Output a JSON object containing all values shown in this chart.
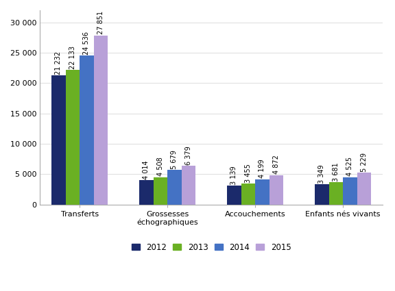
{
  "categories": [
    "Transferts",
    "Grossesses\néchographiques",
    "Accouchements",
    "Enfants nés vivants"
  ],
  "years": [
    "2012",
    "2013",
    "2014",
    "2015"
  ],
  "values": [
    [
      21232,
      22133,
      24536,
      27851
    ],
    [
      4014,
      4508,
      5679,
      6379
    ],
    [
      3139,
      3455,
      4199,
      4872
    ],
    [
      3349,
      3681,
      4525,
      5229
    ]
  ],
  "colors": [
    "#1b2a6b",
    "#6ab023",
    "#4472c4",
    "#b8a0d8"
  ],
  "bar_width": 0.16,
  "ylim": [
    0,
    32000
  ],
  "yticks": [
    0,
    5000,
    10000,
    15000,
    20000,
    25000,
    30000
  ],
  "ytick_labels": [
    "0",
    "5 000",
    "10 000",
    "15 000",
    "20 000",
    "25 000",
    "30 000"
  ],
  "value_labels": [
    [
      "21 232",
      "22 133",
      "24 536",
      "27 851"
    ],
    [
      "4 014",
      "4 508",
      "5 679",
      "6 379"
    ],
    [
      "3 139",
      "3 455",
      "4 199",
      "4 872"
    ],
    [
      "3 349",
      "3 681",
      "4 525",
      "5 229"
    ]
  ],
  "legend_labels": [
    "2012",
    "2013",
    "2014",
    "2015"
  ],
  "background_color": "#ffffff",
  "fontsize_labels": 7.0,
  "fontsize_ticks": 8,
  "fontsize_legend": 8.5,
  "fontsize_xticklabels": 8
}
